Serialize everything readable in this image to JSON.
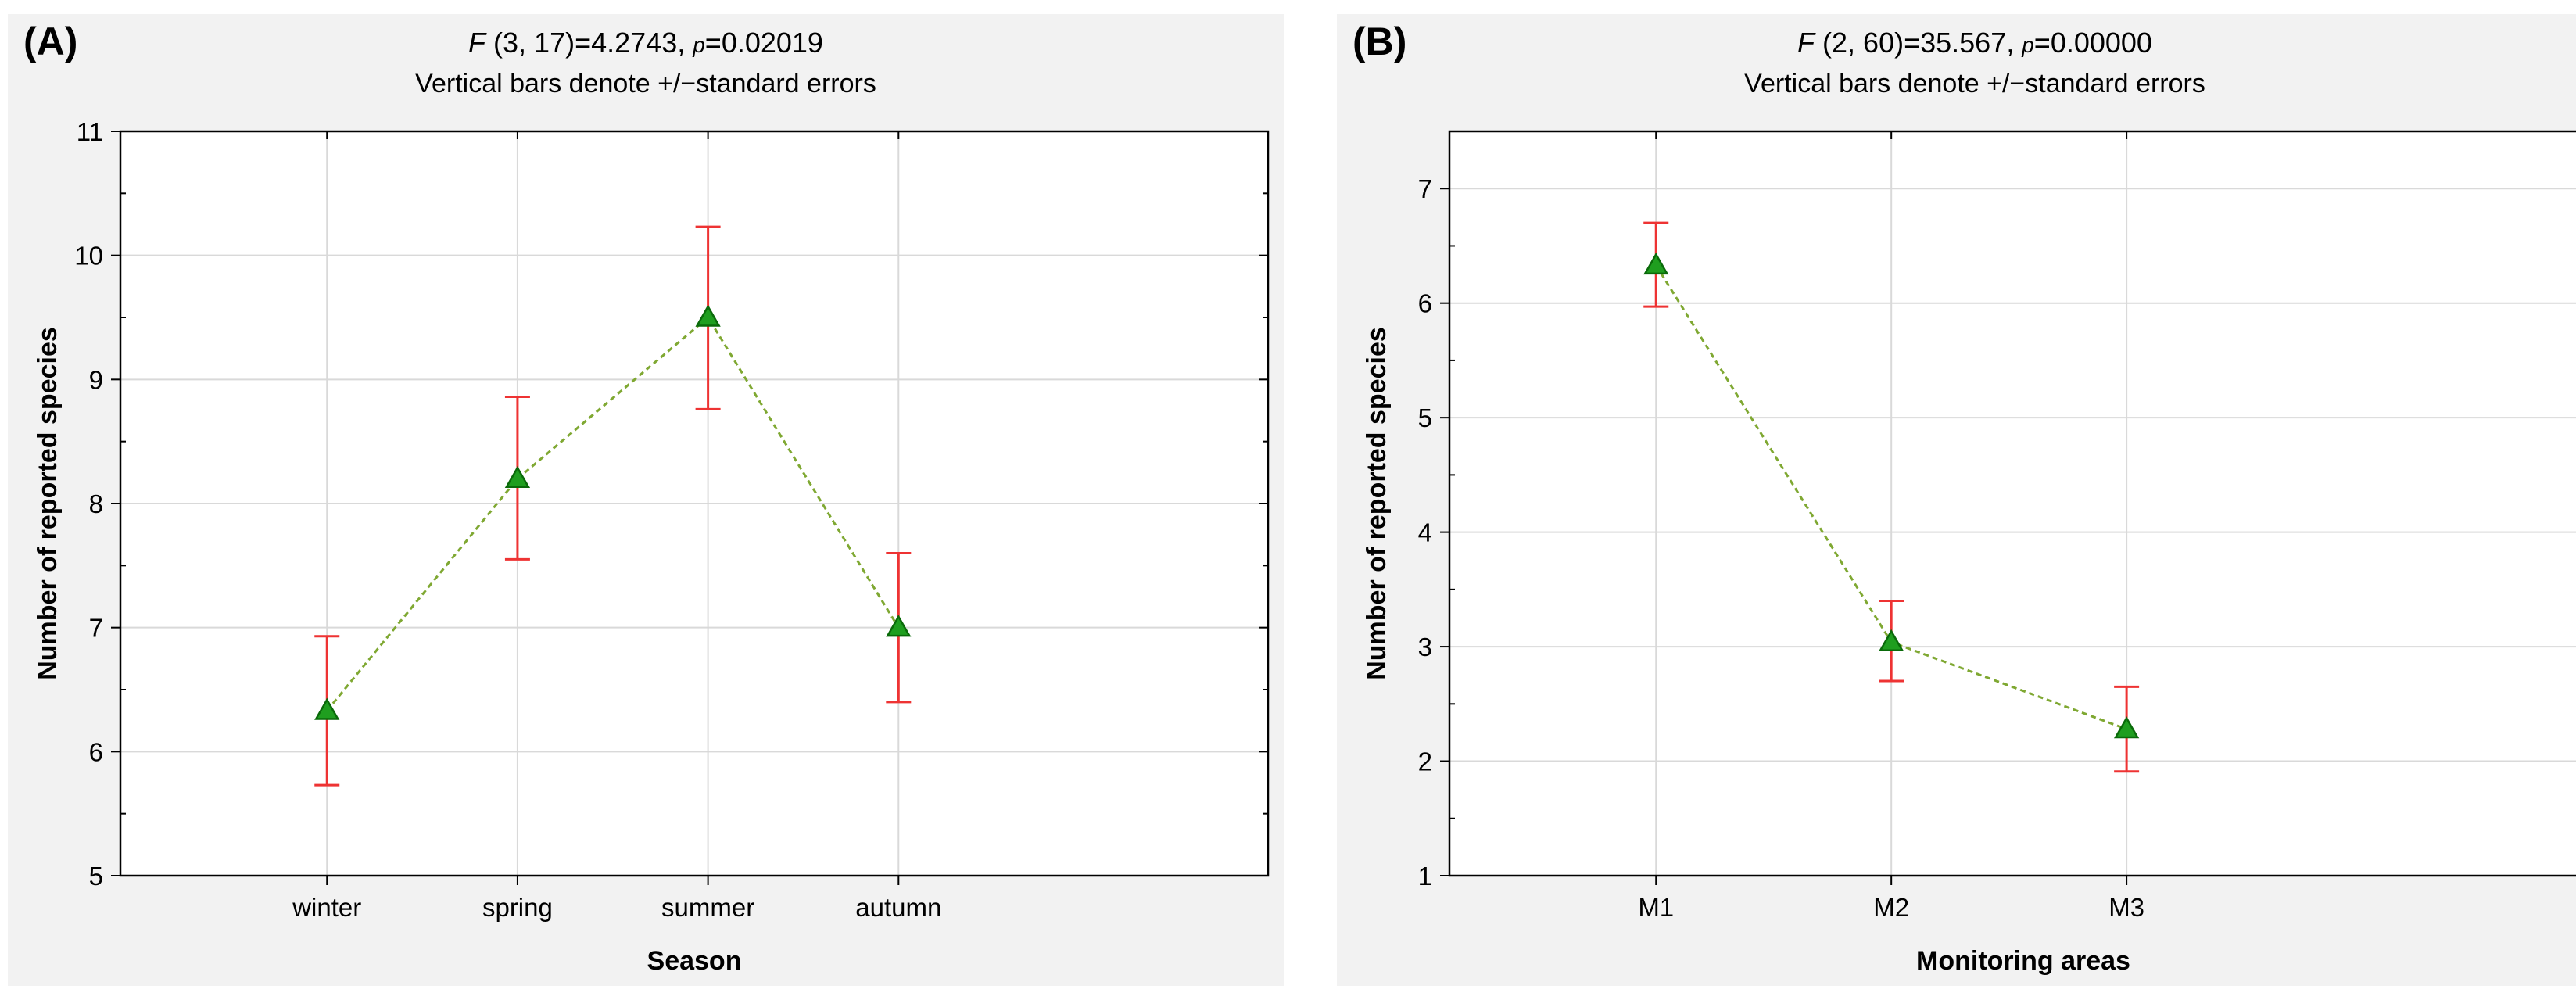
{
  "chart_data": [
    {
      "type": "line",
      "panel_label": "(A)",
      "title": {
        "F": "F",
        "df": " (3, 17)=4.2743, ",
        "p": "p",
        "pval": "=0.02019"
      },
      "subtitle": "Vertical bars denote +/−standard errors",
      "xlabel": "Season",
      "ylabel": "Number of reported species",
      "categories": [
        "winter",
        "spring",
        "summer",
        "autumn"
      ],
      "values": [
        6.33,
        8.2,
        9.5,
        7.0
      ],
      "error_low": [
        5.73,
        7.55,
        8.76,
        6.4
      ],
      "error_high": [
        6.93,
        8.86,
        10.23,
        7.6
      ],
      "ylim": [
        5,
        11
      ],
      "yticks": [
        5,
        6,
        7,
        8,
        9,
        10,
        11
      ],
      "grid": true,
      "colors": {
        "line": "#7fa832",
        "marker_fill": "#1f9e1f",
        "marker_edge": "#0a6a0a",
        "errorbar": "#ee3333"
      }
    },
    {
      "type": "line",
      "panel_label": "(B)",
      "title": {
        "F": "F",
        "df": " (2, 60)=35.567, ",
        "p": "p",
        "pval": "=0.00000"
      },
      "subtitle": "Vertical bars denote +/−standard errors",
      "xlabel": "Monitoring areas",
      "ylabel": "Number of reported species",
      "categories": [
        "M1",
        "M2",
        "M3"
      ],
      "values": [
        6.33,
        3.04,
        2.28
      ],
      "error_low": [
        5.97,
        2.7,
        1.91
      ],
      "error_high": [
        6.7,
        3.4,
        2.65
      ],
      "ylim": [
        1,
        7.5
      ],
      "yticks": [
        1,
        2,
        3,
        4,
        5,
        6,
        7
      ],
      "grid": true,
      "colors": {
        "line": "#7fa832",
        "marker_fill": "#1f9e1f",
        "marker_edge": "#0a6a0a",
        "errorbar": "#ee3333"
      }
    }
  ]
}
